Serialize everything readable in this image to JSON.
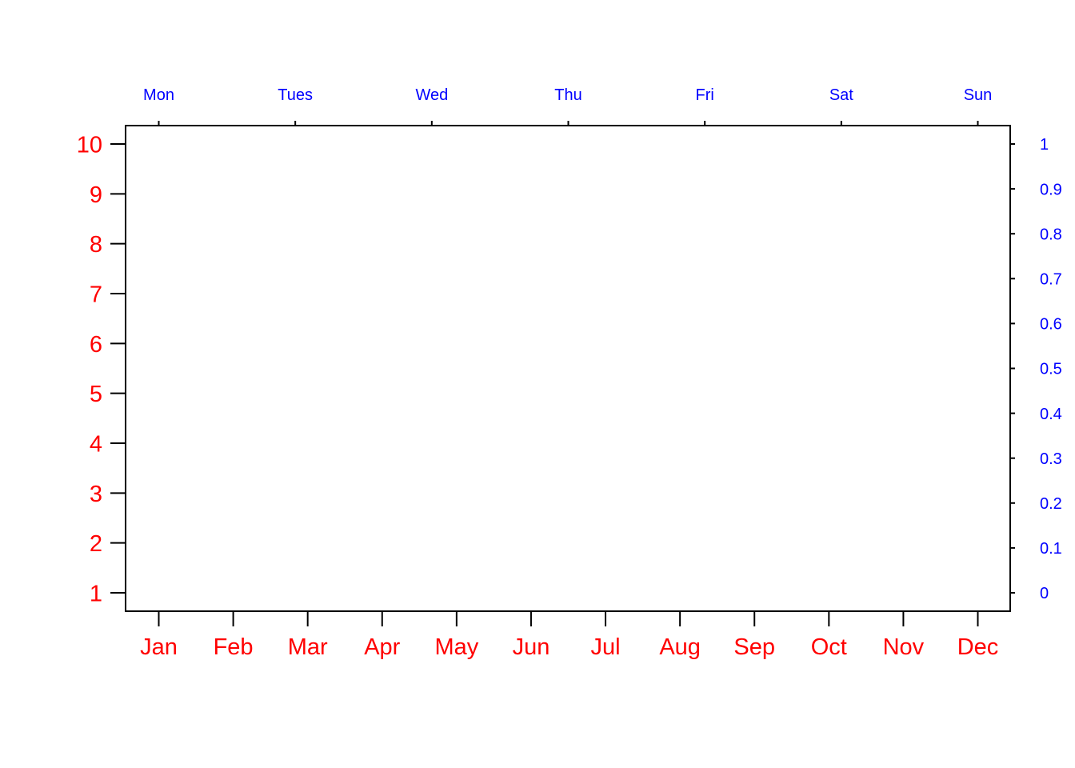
{
  "chart_data": {
    "type": "line",
    "title": "",
    "series": [],
    "grid": false,
    "legend": "none",
    "axes": {
      "bottom": {
        "side": "bottom",
        "ticks": [
          "Jan",
          "Feb",
          "Mar",
          "Apr",
          "May",
          "Jun",
          "Jul",
          "Aug",
          "Sep",
          "Oct",
          "Nov",
          "Dec"
        ],
        "range": [
          1,
          12
        ],
        "label_color": "#ff0000",
        "label_size": "large"
      },
      "top": {
        "side": "top",
        "ticks": [
          "Mon",
          "Tues",
          "Wed",
          "Thu",
          "Fri",
          "Sat",
          "Sun"
        ],
        "range": [
          1,
          7
        ],
        "label_color": "#0000ff",
        "label_size": "small"
      },
      "left": {
        "side": "left",
        "ticks": [
          "1",
          "2",
          "3",
          "4",
          "5",
          "6",
          "7",
          "8",
          "9",
          "10"
        ],
        "range": [
          1,
          10
        ],
        "label_color": "#ff0000",
        "label_size": "large"
      },
      "right": {
        "side": "right",
        "ticks": [
          "0",
          "0.1",
          "0.2",
          "0.3",
          "0.4",
          "0.5",
          "0.6",
          "0.7",
          "0.8",
          "0.9",
          "1"
        ],
        "range": [
          0,
          1
        ],
        "label_color": "#0000ff",
        "label_size": "small"
      }
    },
    "frame_color": "#000000",
    "background": "#ffffff"
  }
}
